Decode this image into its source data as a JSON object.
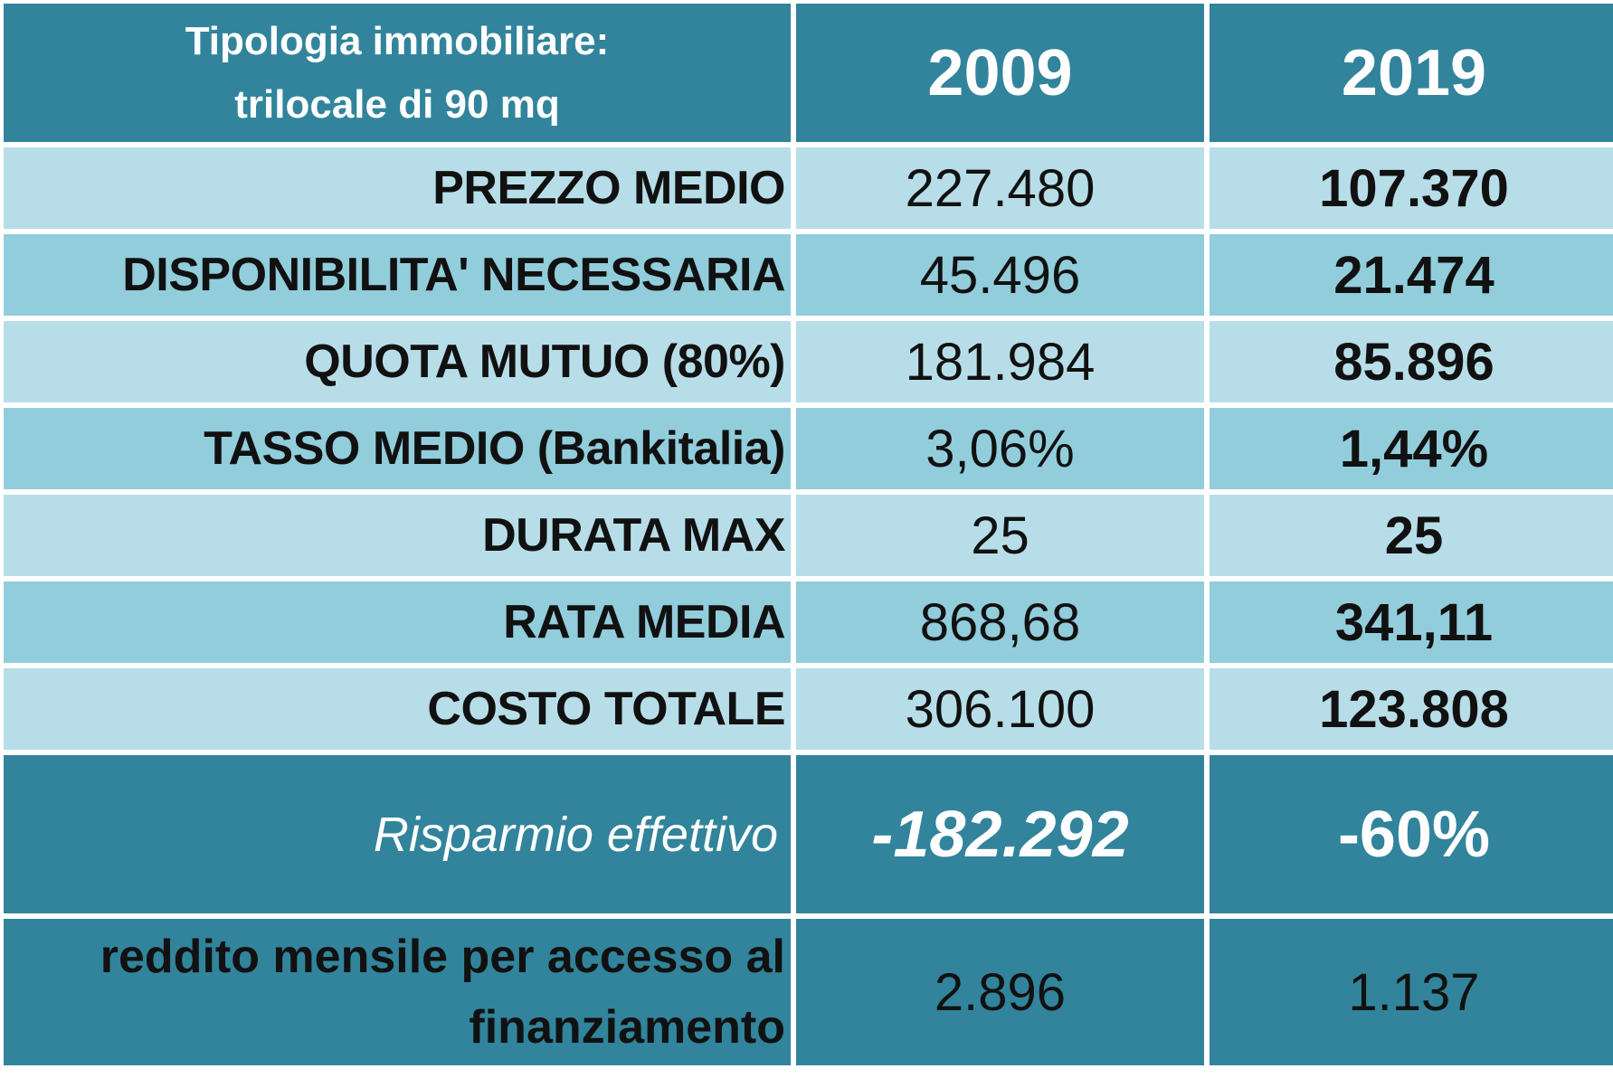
{
  "header": {
    "label_line1": "Tipologia immobiliare:",
    "label_line2": "trilocale di 90 mq",
    "year_a": "2009",
    "year_b": "2019"
  },
  "rows": [
    {
      "label": "PREZZO MEDIO",
      "v2009": "227.480",
      "v2019": "107.370"
    },
    {
      "label": "DISPONIBILITA' NECESSARIA",
      "v2009": "45.496",
      "v2019": "21.474"
    },
    {
      "label": "QUOTA MUTUO (80%)",
      "v2009": "181.984",
      "v2019": "85.896"
    },
    {
      "label": "TASSO MEDIO (Bankitalia)",
      "v2009": "3,06%",
      "v2019": "1,44%"
    },
    {
      "label": "DURATA MAX",
      "v2009": "25",
      "v2019": "25"
    },
    {
      "label": "RATA MEDIA",
      "v2009": "868,68",
      "v2019": "341,11"
    },
    {
      "label": "COSTO TOTALE",
      "v2009": "306.100",
      "v2019": "123.808"
    }
  ],
  "saving": {
    "label": "Risparmio effettivo",
    "amount": "-182.292",
    "percent": "-60%"
  },
  "income": {
    "label_line1": "reddito mensile per accesso al",
    "label_line2": "finanziamento",
    "v2009": "2.896",
    "v2019": "1.137"
  },
  "colors": {
    "header_teal": "#31849b",
    "row_light": "#b7dee8",
    "row_mid": "#92cddc"
  }
}
